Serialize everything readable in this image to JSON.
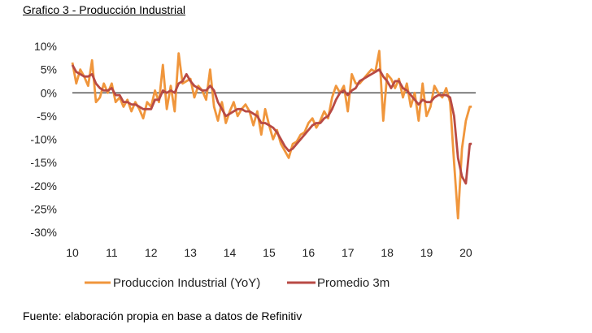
{
  "title": "Grafico 3 - Producción Industrial",
  "source": "Fuente: elaboración propia en base a datos de Refinitiv",
  "chart_data": {
    "type": "line",
    "ylim": [
      -30,
      10
    ],
    "xlim": [
      10,
      20.25
    ],
    "y_ticks": [
      10,
      5,
      0,
      -5,
      -10,
      -15,
      -20,
      -25,
      -30
    ],
    "y_tick_labels": [
      "10%",
      "5%",
      "0%",
      "-5%",
      "-10%",
      "-15%",
      "-20%",
      "-25%",
      "-30%"
    ],
    "x_ticks": [
      10,
      11,
      12,
      13,
      14,
      15,
      16,
      17,
      18,
      19,
      20
    ],
    "x_tick_labels": [
      "10",
      "11",
      "12",
      "13",
      "14",
      "15",
      "16",
      "17",
      "18",
      "19",
      "20"
    ],
    "colors": {
      "yoy": "#F0963C",
      "avg": "#B84A44",
      "axis": "#000000"
    },
    "series": [
      {
        "name": "Produccion Industrial (YoY)",
        "x": [
          10.0,
          10.1,
          10.2,
          10.3,
          10.4,
          10.5,
          10.6,
          10.7,
          10.8,
          10.9,
          11.0,
          11.1,
          11.2,
          11.3,
          11.4,
          11.5,
          11.6,
          11.7,
          11.8,
          11.9,
          12.0,
          12.1,
          12.2,
          12.3,
          12.4,
          12.5,
          12.6,
          12.7,
          12.8,
          12.9,
          13.0,
          13.1,
          13.2,
          13.3,
          13.4,
          13.5,
          13.6,
          13.7,
          13.8,
          13.9,
          14.0,
          14.1,
          14.2,
          14.3,
          14.4,
          14.5,
          14.6,
          14.7,
          14.8,
          14.9,
          15.0,
          15.1,
          15.2,
          15.3,
          15.4,
          15.5,
          15.6,
          15.7,
          15.8,
          15.9,
          16.0,
          16.1,
          16.2,
          16.3,
          16.4,
          16.5,
          16.6,
          16.7,
          16.8,
          16.9,
          17.0,
          17.1,
          17.2,
          17.3,
          17.4,
          17.5,
          17.6,
          17.7,
          17.8,
          17.9,
          18.0,
          18.1,
          18.2,
          18.3,
          18.4,
          18.5,
          18.6,
          18.7,
          18.8,
          18.9,
          19.0,
          19.1,
          19.2,
          19.3,
          19.4,
          19.5,
          19.6,
          19.7,
          19.8,
          19.9,
          20.0,
          20.1,
          20.15
        ],
        "values": [
          6.5,
          2.0,
          5.0,
          3.5,
          1.5,
          7.0,
          -2.0,
          -1.0,
          2.0,
          0.0,
          2.0,
          -2.0,
          -1.0,
          -3.0,
          -1.5,
          -4.0,
          -2.0,
          -3.5,
          -5.5,
          -2.0,
          -3.0,
          0.5,
          -2.0,
          6.0,
          -3.5,
          1.5,
          -4.0,
          8.5,
          2.0,
          2.5,
          3.0,
          -1.0,
          1.5,
          0.5,
          -1.5,
          5.0,
          -3.0,
          -6.0,
          -2.0,
          -6.5,
          -4.0,
          -2.0,
          -5.0,
          -3.5,
          -2.5,
          -4.0,
          -7.0,
          -4.0,
          -9.0,
          -3.5,
          -7.0,
          -10.0,
          -8.0,
          -11.0,
          -12.5,
          -14.0,
          -11.0,
          -10.5,
          -9.0,
          -8.5,
          -6.5,
          -5.5,
          -7.5,
          -6.0,
          -4.0,
          -5.5,
          -1.0,
          1.5,
          0.0,
          1.5,
          -4.0,
          4.0,
          2.0,
          2.0,
          3.0,
          4.0,
          5.0,
          4.5,
          9.0,
          -6.0,
          4.0,
          3.0,
          1.0,
          3.0,
          -1.0,
          2.0,
          -3.0,
          0.0,
          -6.0,
          2.0,
          -5.0,
          -3.0,
          1.5,
          0.0,
          -1.0,
          1.0,
          -2.0,
          -15.0,
          -27.0,
          -12.0,
          -6.0,
          -3.0,
          -3.0
        ]
      },
      {
        "name": "Promedio 3m",
        "x": [
          10.0,
          10.1,
          10.2,
          10.3,
          10.4,
          10.5,
          10.6,
          10.7,
          10.8,
          10.9,
          11.0,
          11.1,
          11.2,
          11.3,
          11.4,
          11.5,
          11.6,
          11.7,
          11.8,
          11.9,
          12.0,
          12.1,
          12.2,
          12.3,
          12.4,
          12.5,
          12.6,
          12.7,
          12.8,
          12.9,
          13.0,
          13.1,
          13.2,
          13.3,
          13.4,
          13.5,
          13.6,
          13.7,
          13.8,
          13.9,
          14.0,
          14.1,
          14.2,
          14.3,
          14.4,
          14.5,
          14.6,
          14.7,
          14.8,
          14.9,
          15.0,
          15.1,
          15.2,
          15.3,
          15.4,
          15.5,
          15.6,
          15.7,
          15.8,
          15.9,
          16.0,
          16.1,
          16.2,
          16.3,
          16.4,
          16.5,
          16.6,
          16.7,
          16.8,
          16.9,
          17.0,
          17.1,
          17.2,
          17.3,
          17.4,
          17.5,
          17.6,
          17.7,
          17.8,
          17.9,
          18.0,
          18.1,
          18.2,
          18.3,
          18.4,
          18.5,
          18.6,
          18.7,
          18.8,
          18.9,
          19.0,
          19.1,
          19.2,
          19.3,
          19.4,
          19.5,
          19.6,
          19.7,
          19.8,
          19.9,
          20.0,
          20.1,
          20.15
        ],
        "values": [
          6.0,
          4.5,
          4.0,
          3.5,
          3.5,
          4.0,
          2.0,
          1.0,
          0.5,
          0.5,
          1.0,
          -0.5,
          -0.5,
          -2.0,
          -2.0,
          -2.5,
          -2.5,
          -3.0,
          -3.5,
          -3.5,
          -3.5,
          -1.5,
          -1.5,
          0.5,
          0.0,
          0.5,
          0.0,
          2.0,
          2.5,
          4.0,
          2.5,
          1.5,
          1.0,
          0.5,
          0.5,
          1.5,
          0.5,
          -2.0,
          -3.5,
          -5.0,
          -4.5,
          -4.0,
          -3.5,
          -3.5,
          -4.0,
          -4.0,
          -4.5,
          -5.0,
          -6.5,
          -6.5,
          -7.0,
          -7.5,
          -8.5,
          -10.0,
          -11.5,
          -12.5,
          -12.0,
          -11.0,
          -10.0,
          -9.0,
          -8.0,
          -7.0,
          -6.5,
          -6.5,
          -5.5,
          -5.0,
          -3.5,
          -1.5,
          0.0,
          0.5,
          -0.5,
          0.5,
          1.0,
          2.5,
          3.0,
          3.5,
          4.0,
          4.5,
          5.0,
          3.5,
          2.5,
          1.0,
          2.5,
          2.5,
          1.0,
          0.5,
          -0.5,
          -1.5,
          -2.5,
          -1.5,
          -2.0,
          -2.0,
          -1.0,
          -0.5,
          -0.5,
          -0.5,
          -1.0,
          -5.0,
          -14.0,
          -18.0,
          -19.5,
          -11.0,
          -11.0
        ]
      }
    ]
  }
}
